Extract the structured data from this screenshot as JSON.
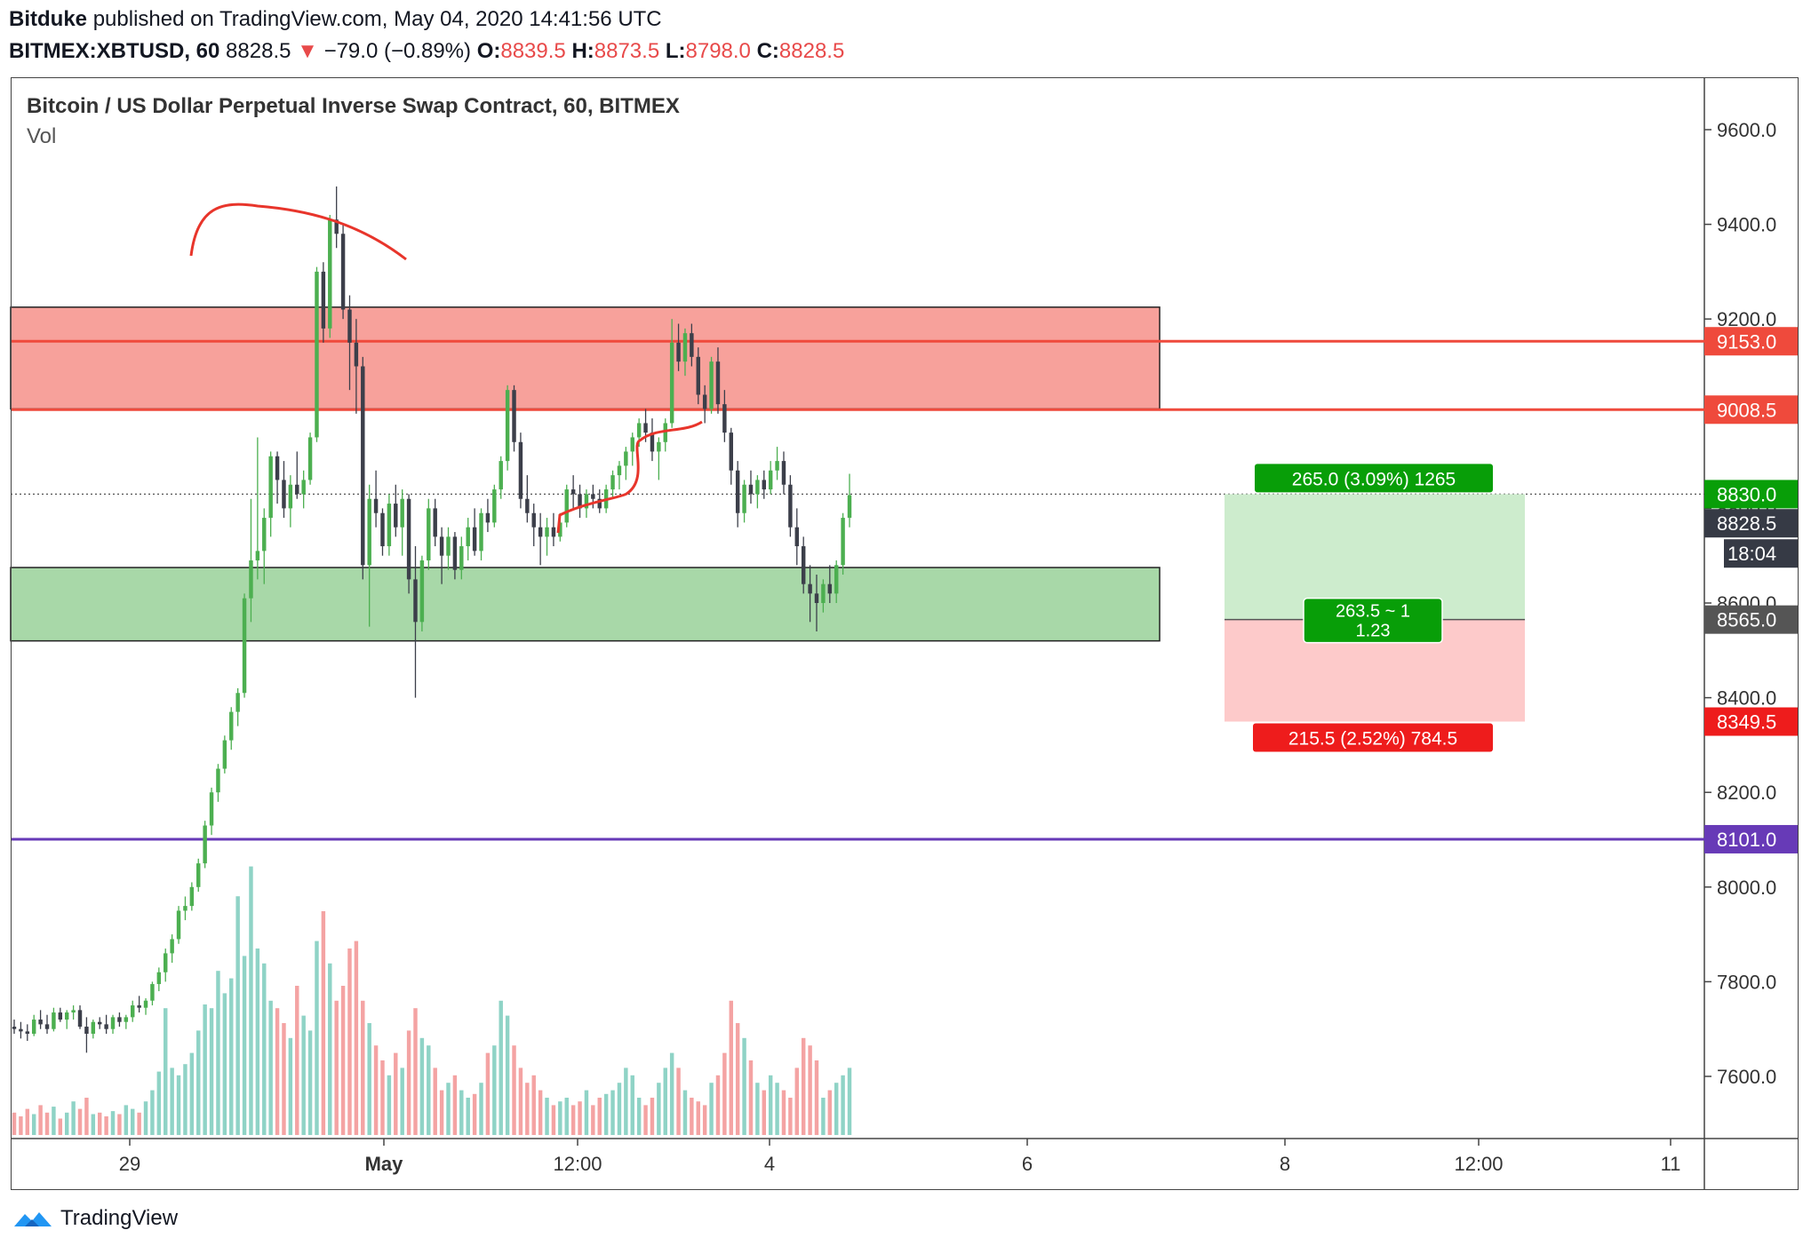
{
  "header": {
    "publisher": "Bitduke",
    "published_text": "published on TradingView.com, May 04, 2020 14:41:56 UTC",
    "symbol": "BITMEX:XBTUSD, 60",
    "last": "8828.5",
    "change": "−79.0 (−0.89%)",
    "open_label": "O:",
    "open": "8839.5",
    "high_label": "H:",
    "high": "8873.5",
    "low_label": "L:",
    "low": "8798.0",
    "close_label": "C:",
    "close": "8828.5"
  },
  "legend": {
    "title": "Bitcoin / US Dollar Perpetual Inverse Swap Contract, 60, BITMEX",
    "volume": "Vol"
  },
  "footer": {
    "brand": "TradingView"
  },
  "chart_data": {
    "type": "candlestick",
    "y_axis": {
      "min": 7480,
      "max": 9720,
      "ticks": [
        7600,
        7800,
        8000,
        8200,
        8400,
        8600,
        8800,
        9000,
        9200,
        9400,
        9600
      ],
      "tick_labels": [
        "7600.0",
        "7800.0",
        "8000.0",
        "8200.0",
        "8400.0",
        "8600.0",
        "8800.0",
        "9000.0",
        "9200.0",
        "9400.0",
        "9600.0"
      ]
    },
    "x_axis": {
      "tick_labels": [
        "29",
        "May",
        "12:00",
        "4",
        "6",
        "8",
        "12:00",
        "11"
      ]
    },
    "price_labels": [
      {
        "value": 9153.0,
        "text": "9153.0",
        "color": "#ef4a3c"
      },
      {
        "value": 9008.5,
        "text": "9008.5",
        "color": "#ef4a3c"
      },
      {
        "value": 8830.0,
        "text": "8830.0",
        "color": "#089e08"
      },
      {
        "value": 8828.5,
        "text": "8828.5",
        "color": "#363a45"
      },
      {
        "value": 8565.0,
        "text": "8565.0",
        "color": "#555555"
      },
      {
        "value": 8349.5,
        "text": "8349.5",
        "color": "#ee1c1c"
      },
      {
        "value": 8101.0,
        "text": "8101.0",
        "color": "#673ab7"
      }
    ],
    "countdown": "18:04",
    "horizontal_lines": [
      {
        "value": 9153.0,
        "color": "#ef4a3c"
      },
      {
        "value": 9008.5,
        "color": "#ef4a3c"
      },
      {
        "value": 8101.0,
        "color": "#673ab7"
      }
    ],
    "zones": [
      {
        "name": "resistance",
        "top": 9225,
        "bottom": 9010,
        "color": "#f7a19b"
      },
      {
        "name": "support",
        "top": 8675,
        "bottom": 8520,
        "color": "#a8d8a8"
      }
    ],
    "position": {
      "type": "long",
      "entry": 8565.0,
      "target": 8830.0,
      "stop": 8349.5,
      "target_text": "265.0 (3.09%) 1265",
      "stop_text": "215.5 (2.52%) 784.5",
      "ratio_line1": "263.5 ~ 1",
      "ratio_line2": "1.23"
    },
    "ohlc_series": {
      "description": "approx hourly candles, Apr 28 to May 4",
      "candles": [
        [
          7705,
          7720,
          7690,
          7700
        ],
        [
          7700,
          7715,
          7680,
          7695
        ],
        [
          7695,
          7710,
          7675,
          7690
        ],
        [
          7690,
          7730,
          7685,
          7720
        ],
        [
          7720,
          7740,
          7700,
          7710
        ],
        [
          7710,
          7730,
          7690,
          7700
        ],
        [
          7700,
          7745,
          7695,
          7735
        ],
        [
          7735,
          7745,
          7715,
          7720
        ],
        [
          7720,
          7740,
          7700,
          7735
        ],
        [
          7735,
          7750,
          7720,
          7740
        ],
        [
          7740,
          7750,
          7700,
          7705
        ],
        [
          7705,
          7725,
          7650,
          7690
        ],
        [
          7690,
          7720,
          7680,
          7715
        ],
        [
          7715,
          7725,
          7700,
          7710
        ],
        [
          7710,
          7730,
          7690,
          7700
        ],
        [
          7700,
          7730,
          7690,
          7725
        ],
        [
          7725,
          7735,
          7705,
          7715
        ],
        [
          7715,
          7730,
          7700,
          7725
        ],
        [
          7725,
          7760,
          7715,
          7750
        ],
        [
          7750,
          7770,
          7735,
          7745
        ],
        [
          7745,
          7765,
          7730,
          7760
        ],
        [
          7760,
          7800,
          7750,
          7795
        ],
        [
          7795,
          7830,
          7780,
          7820
        ],
        [
          7820,
          7870,
          7800,
          7860
        ],
        [
          7860,
          7900,
          7840,
          7890
        ],
        [
          7890,
          7960,
          7880,
          7950
        ],
        [
          7950,
          7980,
          7930,
          7960
        ],
        [
          7960,
          8010,
          7950,
          8000
        ],
        [
          8000,
          8060,
          7990,
          8050
        ],
        [
          8050,
          8140,
          8040,
          8130
        ],
        [
          8130,
          8210,
          8110,
          8200
        ],
        [
          8200,
          8260,
          8180,
          8250
        ],
        [
          8250,
          8320,
          8240,
          8310
        ],
        [
          8310,
          8380,
          8290,
          8370
        ],
        [
          8370,
          8420,
          8340,
          8410
        ],
        [
          8410,
          8620,
          8400,
          8610
        ],
        [
          8610,
          8820,
          8560,
          8690
        ],
        [
          8690,
          8950,
          8650,
          8710
        ],
        [
          8710,
          8800,
          8640,
          8780
        ],
        [
          8780,
          8920,
          8740,
          8910
        ],
        [
          8910,
          8920,
          8810,
          8860
        ],
        [
          8860,
          8900,
          8780,
          8800
        ],
        [
          8800,
          8870,
          8760,
          8850
        ],
        [
          8850,
          8920,
          8820,
          8830
        ],
        [
          8830,
          8880,
          8800,
          8860
        ],
        [
          8860,
          8960,
          8850,
          8950
        ],
        [
          8950,
          9310,
          8940,
          9300
        ],
        [
          9300,
          9320,
          9150,
          9180
        ],
        [
          9180,
          9420,
          9160,
          9410
        ],
        [
          9410,
          9480,
          9350,
          9380
        ],
        [
          9380,
          9400,
          9200,
          9220
        ],
        [
          9220,
          9250,
          9050,
          9150
        ],
        [
          9150,
          9200,
          9000,
          9100
        ],
        [
          9100,
          9120,
          8650,
          8680
        ],
        [
          8680,
          8850,
          8550,
          8820
        ],
        [
          8820,
          8880,
          8760,
          8790
        ],
        [
          8790,
          8800,
          8700,
          8720
        ],
        [
          8720,
          8830,
          8700,
          8810
        ],
        [
          8810,
          8850,
          8740,
          8760
        ],
        [
          8760,
          8840,
          8700,
          8820
        ],
        [
          8820,
          8830,
          8620,
          8650
        ],
        [
          8650,
          8720,
          8400,
          8560
        ],
        [
          8560,
          8700,
          8540,
          8690
        ],
        [
          8690,
          8820,
          8670,
          8800
        ],
        [
          8800,
          8820,
          8720,
          8740
        ],
        [
          8740,
          8760,
          8640,
          8700
        ],
        [
          8700,
          8760,
          8670,
          8740
        ],
        [
          8740,
          8750,
          8650,
          8670
        ],
        [
          8670,
          8740,
          8650,
          8720
        ],
        [
          8720,
          8780,
          8690,
          8760
        ],
        [
          8760,
          8800,
          8700,
          8710
        ],
        [
          8710,
          8800,
          8690,
          8790
        ],
        [
          8790,
          8820,
          8750,
          8770
        ],
        [
          8770,
          8850,
          8760,
          8840
        ],
        [
          8840,
          8910,
          8820,
          8900
        ],
        [
          8900,
          9060,
          8880,
          9050
        ],
        [
          9050,
          9060,
          8920,
          8940
        ],
        [
          8940,
          8960,
          8800,
          8820
        ],
        [
          8820,
          8870,
          8770,
          8790
        ],
        [
          8790,
          8810,
          8720,
          8760
        ],
        [
          8760,
          8790,
          8680,
          8740
        ],
        [
          8740,
          8780,
          8700,
          8760
        ],
        [
          8760,
          8790,
          8720,
          8740
        ],
        [
          8740,
          8790,
          8730,
          8770
        ],
        [
          8770,
          8850,
          8760,
          8840
        ],
        [
          8840,
          8870,
          8800,
          8830
        ],
        [
          8830,
          8850,
          8780,
          8800
        ],
        [
          8800,
          8840,
          8780,
          8830
        ],
        [
          8830,
          8850,
          8800,
          8820
        ],
        [
          8820,
          8840,
          8790,
          8800
        ],
        [
          8800,
          8850,
          8790,
          8840
        ],
        [
          8840,
          8880,
          8820,
          8870
        ],
        [
          8870,
          8900,
          8840,
          8890
        ],
        [
          8890,
          8930,
          8860,
          8920
        ],
        [
          8920,
          8960,
          8890,
          8950
        ],
        [
          8950,
          8990,
          8930,
          8980
        ],
        [
          8980,
          9010,
          8940,
          8960
        ],
        [
          8960,
          8990,
          8900,
          8920
        ],
        [
          8920,
          8950,
          8860,
          8940
        ],
        [
          8940,
          8990,
          8920,
          8980
        ],
        [
          8980,
          9200,
          8970,
          9150
        ],
        [
          9150,
          9190,
          9090,
          9110
        ],
        [
          9110,
          9180,
          9080,
          9170
        ],
        [
          9170,
          9190,
          9100,
          9120
        ],
        [
          9120,
          9140,
          9020,
          9040
        ],
        [
          9040,
          9060,
          8980,
          9010
        ],
        [
          9010,
          9120,
          9000,
          9110
        ],
        [
          9110,
          9140,
          9000,
          9020
        ],
        [
          9020,
          9050,
          8940,
          8960
        ],
        [
          8960,
          8970,
          8850,
          8880
        ],
        [
          8880,
          8900,
          8760,
          8790
        ],
        [
          8790,
          8860,
          8770,
          8850
        ],
        [
          8850,
          8880,
          8810,
          8830
        ],
        [
          8830,
          8870,
          8800,
          8860
        ],
        [
          8860,
          8880,
          8820,
          8840
        ],
        [
          8840,
          8900,
          8830,
          8880
        ],
        [
          8880,
          8930,
          8860,
          8900
        ],
        [
          8900,
          8920,
          8830,
          8850
        ],
        [
          8850,
          8870,
          8740,
          8760
        ],
        [
          8760,
          8800,
          8680,
          8720
        ],
        [
          8720,
          8740,
          8620,
          8640
        ],
        [
          8640,
          8680,
          8560,
          8620
        ],
        [
          8620,
          8660,
          8540,
          8600
        ],
        [
          8600,
          8650,
          8580,
          8640
        ],
        [
          8640,
          8680,
          8600,
          8620
        ],
        [
          8620,
          8690,
          8600,
          8680
        ],
        [
          8680,
          8790,
          8660,
          8780
        ],
        [
          8780,
          8873,
          8760,
          8828
        ]
      ],
      "volumes": [
        30,
        25,
        35,
        28,
        40,
        30,
        38,
        22,
        30,
        45,
        35,
        50,
        28,
        30,
        25,
        32,
        28,
        40,
        35,
        30,
        45,
        60,
        85,
        170,
        90,
        80,
        95,
        110,
        140,
        175,
        170,
        220,
        190,
        210,
        320,
        240,
        360,
        250,
        230,
        180,
        170,
        150,
        130,
        200,
        160,
        140,
        260,
        300,
        230,
        180,
        200,
        250,
        260,
        180,
        150,
        120,
        100,
        80,
        110,
        90,
        140,
        170,
        130,
        120,
        90,
        60,
        70,
        80,
        60,
        50,
        55,
        70,
        110,
        120,
        180,
        160,
        120,
        90,
        70,
        80,
        60,
        50,
        40,
        45,
        50,
        40,
        45,
        60,
        40,
        50,
        55,
        60,
        70,
        90,
        80,
        50,
        40,
        50,
        70,
        90,
        110,
        90,
        60,
        50,
        45,
        40,
        70,
        80,
        110,
        180,
        150,
        130,
        100,
        70,
        60,
        80,
        70,
        60,
        50,
        90,
        130,
        120,
        100,
        50,
        60,
        70,
        80,
        90
      ]
    },
    "trend_curves": [
      {
        "name": "top-arc",
        "color": "#e8352b"
      },
      {
        "name": "moving-average",
        "color": "#e8352b"
      }
    ]
  }
}
